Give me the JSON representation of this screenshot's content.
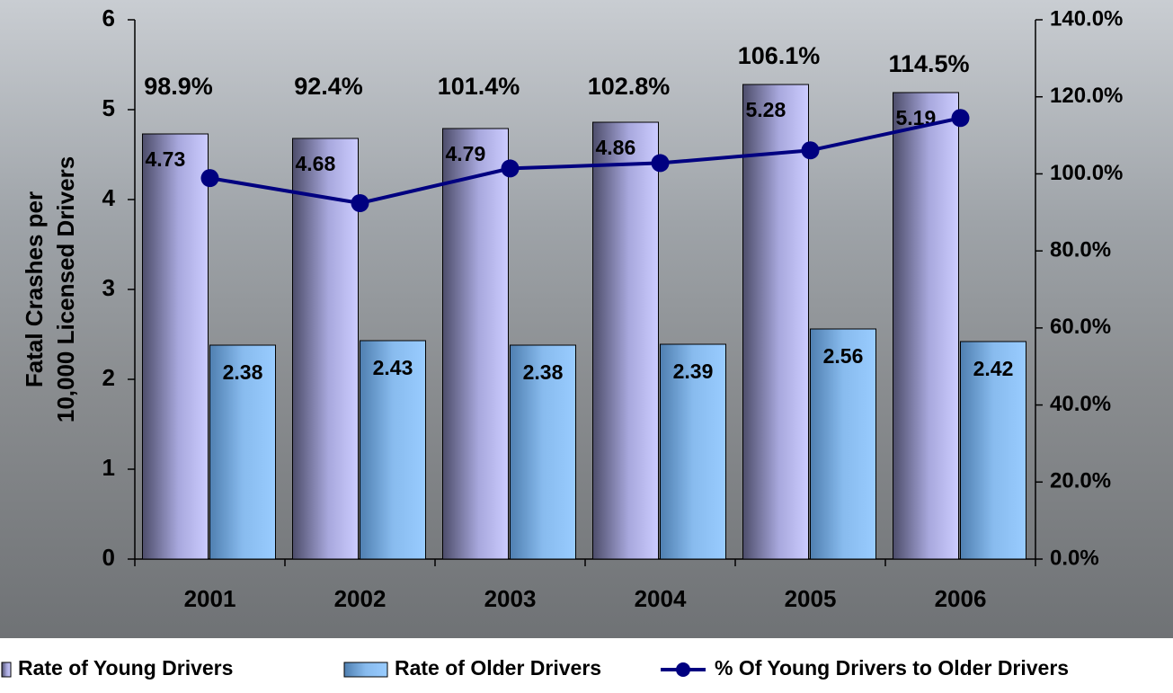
{
  "chart_data": {
    "type": "bar",
    "ylabel": [
      "Fatal Crashes per",
      "10,000 Licensed Drivers"
    ],
    "categories": [
      "2001",
      "2002",
      "2003",
      "2004",
      "2005",
      "2006"
    ],
    "series": [
      {
        "name": "Rate of Young Drivers",
        "color": "#ccccff",
        "values": [
          4.73,
          4.68,
          4.79,
          4.86,
          5.28,
          5.19
        ]
      },
      {
        "name": "Rate of Older Drivers",
        "color": "#99ccff",
        "values": [
          2.38,
          2.43,
          2.38,
          2.39,
          2.56,
          2.42
        ]
      },
      {
        "name": "% Of Young Drivers to Older Drivers",
        "type": "line",
        "axis": "y2",
        "color": "#000080",
        "values": [
          98.9,
          92.4,
          101.4,
          102.8,
          106.1,
          114.5
        ],
        "value_labels": [
          "98.9%",
          "92.4%",
          "101.4%",
          "102.8%",
          "106.1%",
          "114.5%"
        ]
      }
    ],
    "ylim": [
      0,
      6
    ],
    "yticks": [
      0,
      1,
      2,
      3,
      4,
      5,
      6
    ],
    "y2lim": [
      0,
      140
    ],
    "y2ticks": [
      {
        "value": 0,
        "label": "0.0%"
      },
      {
        "value": 20,
        "label": "20.0%"
      },
      {
        "value": 40,
        "label": "40.0%"
      },
      {
        "value": 60,
        "label": "60.0%"
      },
      {
        "value": 80,
        "label": "80.0%"
      },
      {
        "value": 100,
        "label": "100.0%"
      },
      {
        "value": 120,
        "label": "120.0%"
      },
      {
        "value": 140,
        "label": "140.0%"
      }
    ],
    "grid": false,
    "legend": "bottom"
  }
}
